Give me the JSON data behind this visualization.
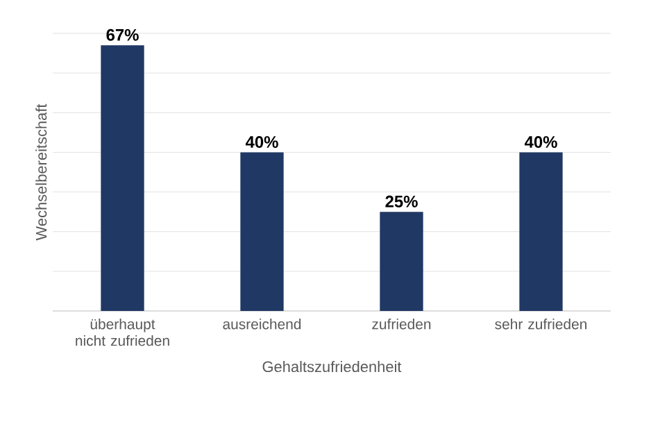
{
  "chart_data": {
    "type": "bar",
    "xlabel": "Gehaltszufriedenheit",
    "ylabel": "Wechselbereitschaft",
    "categories": [
      "überhaupt nicht zufrieden",
      "ausreichend",
      "zufrieden",
      "sehr zufrieden"
    ],
    "values": [
      67,
      40,
      25,
      40
    ],
    "value_labels": [
      "67%",
      "40%",
      "25%",
      "40%"
    ],
    "color": "#203864",
    "ylim": [
      0,
      70
    ],
    "yticks": [
      {
        "value": 0,
        "label": null
      },
      {
        "value": 10,
        "label": null
      },
      {
        "value": 20,
        "label": null
      },
      {
        "value": 30,
        "label": null
      },
      {
        "value": 40,
        "label": null
      },
      {
        "value": 50,
        "label": null
      },
      {
        "value": 60,
        "label": null
      },
      {
        "value": 70,
        "label": null
      }
    ],
    "grid": "y",
    "tick_labels": "x"
  }
}
